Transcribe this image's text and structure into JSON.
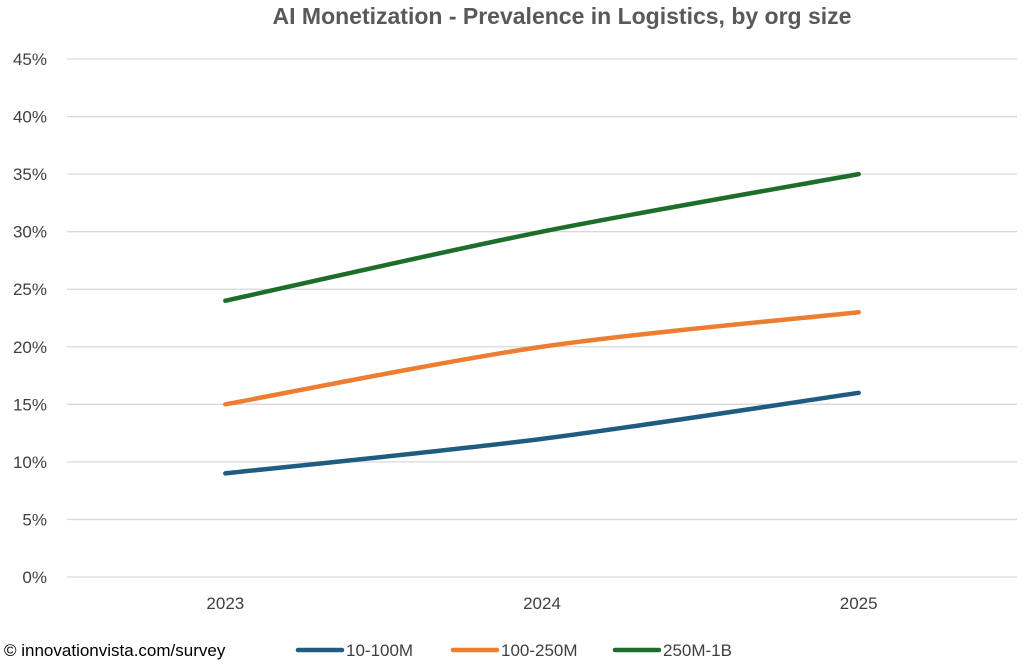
{
  "chart_data": {
    "type": "line",
    "title": "AI Monetization - Prevalence in Logistics, by org size",
    "categories": [
      "2023",
      "2024",
      "2025"
    ],
    "series": [
      {
        "name": "10-100M",
        "values": [
          9,
          12,
          16
        ],
        "color": "#1f5c7f"
      },
      {
        "name": "100-250M",
        "values": [
          15,
          20,
          23
        ],
        "color": "#ed7d31"
      },
      {
        "name": "250M-1B",
        "values": [
          24,
          30,
          35
        ],
        "color": "#1e6e2b"
      }
    ],
    "ylim": [
      0,
      45
    ],
    "yticks": [
      "0%",
      "5%",
      "10%",
      "15%",
      "20%",
      "25%",
      "30%",
      "35%",
      "40%",
      "45%"
    ],
    "grid": true,
    "legend_position": "bottom"
  },
  "credit": "© innovationvista.com/survey"
}
